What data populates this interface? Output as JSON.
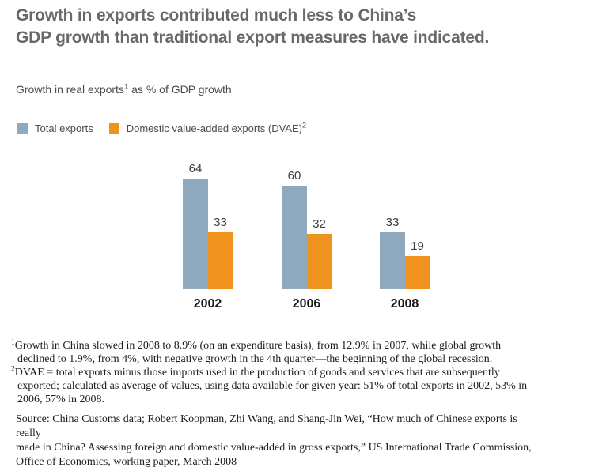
{
  "title": {
    "line1": "Growth in exports contributed much less to China’s",
    "line2": "GDP growth than traditional export measures have indicated."
  },
  "subtitle": {
    "prefix": "Growth in real exports",
    "sup": "1",
    "suffix": " as % of GDP growth"
  },
  "legend": [
    {
      "label": "Total exports",
      "sup": ""
    },
    {
      "label": "Domestic value-added exports (DVAE)",
      "sup": "2"
    }
  ],
  "chart_data": {
    "type": "bar",
    "title": "Growth in real exports as % of GDP growth",
    "categories": [
      "2002",
      "2006",
      "2008"
    ],
    "series": [
      {
        "name": "Total exports",
        "color": "#8FA9BE",
        "values": [
          64,
          60,
          33
        ]
      },
      {
        "name": "Domestic value-added exports (DVAE)",
        "color": "#F0931E",
        "values": [
          33,
          32,
          19
        ]
      }
    ],
    "value_labels": true,
    "axes_visible": false,
    "grid": false,
    "legend_position": "top-left",
    "ylim": [
      0,
      70
    ]
  },
  "footnotes": [
    {
      "marker": "1",
      "text": "Growth in China slowed in 2008 to 8.9% (on an expenditure basis), from 12.9% in 2007, while global growth\ndeclined to 1.9%, from 4%, with negative growth in the 4th quarter—the beginning of the global recession."
    },
    {
      "marker": "2",
      "text": "DVAE = total exports minus those imports used in the production of goods and services that are subsequently\nexported; calculated as average of values, using data available for given year: 51% of total exports in 2002, 53% in\n2006, 57% in 2008."
    }
  ],
  "source": {
    "text": "Source: China Customs data; Robert Koopman, Zhi Wang, and Shang-Jin Wei, “How much of Chinese exports is\nreally\nmade in China? Assessing foreign and domestic value-added in gross exports,” US International Trade Commission,\nOffice of Economics, working paper, March 2008"
  }
}
